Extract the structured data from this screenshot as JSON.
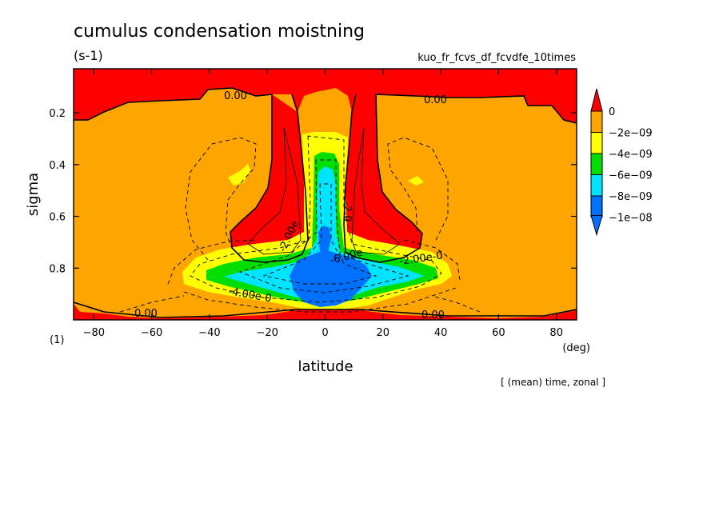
{
  "figure": {
    "title": "cumulus condensation moistning",
    "units": "(s-1)",
    "run_name": "kuo_fr_fcvs_df_fcvdfe_10times",
    "footer": "[ (mean) time, zonal ]",
    "y_unit_label": "(1)",
    "x_unit_label": "(deg)"
  },
  "chart_data": {
    "type": "contour",
    "title": "cumulus condensation moistning",
    "xlabel": "latitude",
    "ylabel": "sigma",
    "xlim": [
      -87,
      87
    ],
    "ylim": [
      1.0,
      0.03
    ],
    "x_ticks": [
      -80,
      -60,
      -40,
      -20,
      0,
      20,
      40,
      60,
      80
    ],
    "y_ticks": [
      0.2,
      0.4,
      0.6,
      0.8
    ],
    "x_tick_labels": [
      "−80",
      "−60",
      "−40",
      "−20",
      "0",
      "20",
      "40",
      "60",
      "80"
    ],
    "y_tick_labels": [
      "0.2",
      "0.4",
      "0.6",
      "0.8"
    ],
    "colorbar": {
      "labels": [
        "0",
        "−2e−09",
        "−4e−09",
        "−6e−09",
        "−8e−09",
        "−1e−08"
      ],
      "levels": [
        0,
        -2e-09,
        -4e-09,
        -6e-09,
        -8e-09,
        -1e-08
      ],
      "colors": [
        "#ff0000",
        "#ffa500",
        "#ffff00",
        "#00dd00",
        "#00e5ff",
        "#0070ff"
      ],
      "extend": "both"
    },
    "contour_labels": [
      {
        "text": "0.00",
        "x": -32,
        "y": 0.12
      },
      {
        "text": "0.00",
        "x": 45,
        "y": 0.12
      },
      {
        "text": "0.00",
        "x": -60,
        "y": 0.97
      },
      {
        "text": "0.00",
        "x": 38,
        "y": 0.97
      },
      {
        "text": "-2.00e",
        "x": -12,
        "y": 0.72
      },
      {
        "text": "-2.0",
        "x": 10,
        "y": 0.63
      },
      {
        "text": "-2.00e-0",
        "x": 40,
        "y": 0.77
      },
      {
        "text": "-6.00e",
        "x": 8,
        "y": 0.77
      },
      {
        "text": "-4.00e-0",
        "x": -25,
        "y": 0.91
      }
    ],
    "regions": [
      {
        "level": -2e-09,
        "desc": "broad moistening envelope, surface to sigma ~0.15"
      },
      {
        "level": -4e-09,
        "desc": "low-level bands near sigma 0.8-0.9, lat -50 to 50, and tropical column"
      },
      {
        "level": -6e-09,
        "desc": "tropical column sigma 0.35-0.85 and low-level band"
      },
      {
        "level": -8e-09,
        "desc": "low-level core lat -30 to 30"
      },
      {
        "level": -1e-08,
        "desc": "minimum near equator, sigma 0.75-0.95"
      },
      {
        "level": 0,
        "desc": "non-negative regions: upper troposphere above ~0.15, subtropical columns lat ±10-35, near surface"
      }
    ]
  }
}
